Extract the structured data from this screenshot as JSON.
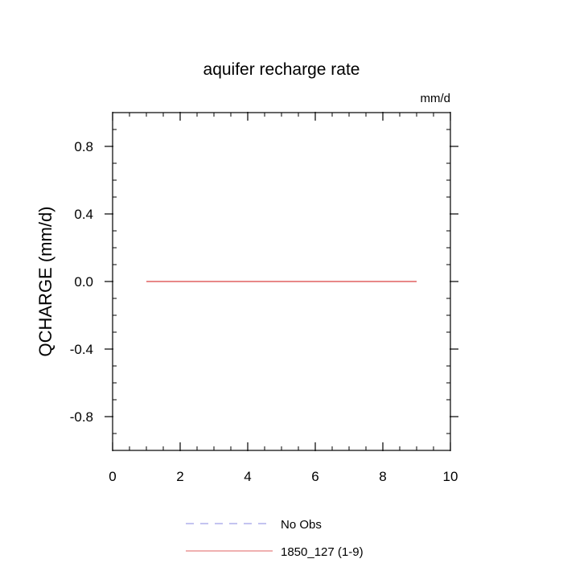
{
  "chart_data": {
    "type": "line",
    "title": "aquifer recharge rate",
    "units_label": "mm/d",
    "xlabel": "",
    "ylabel": "QCHARGE  (mm/d)",
    "xlim": [
      0,
      10
    ],
    "ylim": [
      -1,
      1
    ],
    "x_ticks": [
      0,
      2,
      4,
      6,
      8,
      10
    ],
    "x_tick_labels": [
      "0",
      "2",
      "4",
      "6",
      "8",
      "10"
    ],
    "y_ticks": [
      0.8,
      0.4,
      0.0,
      -0.4,
      -0.8
    ],
    "y_tick_labels": [
      "0.8",
      "0.4",
      "0.0",
      "-0.4",
      "-0.8"
    ],
    "grid": false,
    "legend_position": "bottom",
    "series": [
      {
        "name": "No Obs",
        "x": [],
        "y": [],
        "color": "#8a8ae0",
        "dash": "dashed"
      },
      {
        "name": "1850_127 (1-9)",
        "x": [
          1,
          9
        ],
        "y": [
          0.0,
          0.0
        ],
        "color": "#e06060",
        "dash": "solid"
      }
    ]
  }
}
